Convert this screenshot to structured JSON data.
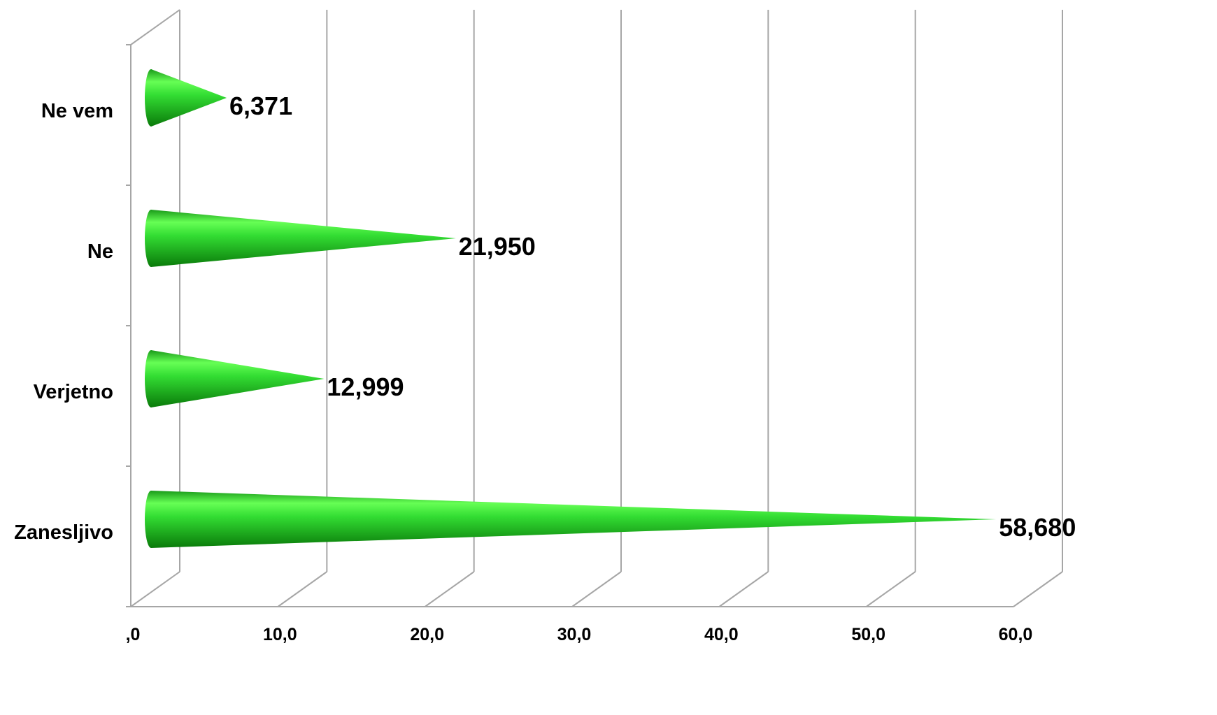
{
  "chart_data": {
    "type": "bar",
    "orientation": "horizontal",
    "shape": "cone",
    "categories": [
      "Zanesljivo",
      "Verjetno",
      "Ne",
      "Ne vem"
    ],
    "values": [
      58.68,
      12.999,
      21.95,
      6.371
    ],
    "value_labels": [
      "58,680",
      "12,999",
      "21,950",
      "6,371"
    ],
    "x_ticks": [
      0,
      10,
      20,
      30,
      40,
      50,
      60
    ],
    "x_tick_labels": [
      ",0",
      "10,0",
      "20,0",
      "30,0",
      "40,0",
      "50,0",
      "60,0"
    ],
    "xlim": [
      0,
      60
    ],
    "grid": true,
    "legend": "none",
    "title": "",
    "xlabel": "",
    "ylabel": "",
    "colors": {
      "bar": "#22cc22",
      "bar_light": "#66ff55",
      "bar_dark": "#0a7a0a",
      "grid": "#a6a6a6"
    }
  }
}
